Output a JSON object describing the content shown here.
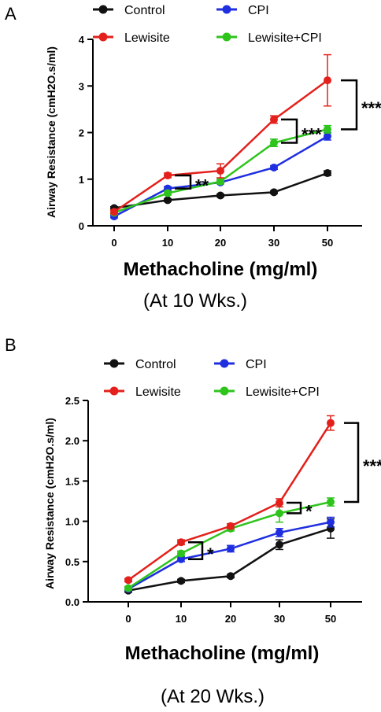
{
  "chart_data": [
    {
      "type": "line",
      "panel": "A",
      "caption": "(At 10 Wks.)",
      "xlabel": "Methacholine (mg/ml)",
      "ylabel": "Airway Resistance (cmH2O.s/ml)",
      "x": [
        0,
        10,
        20,
        30,
        50
      ],
      "x_tick_labels": [
        "0",
        "10",
        "20",
        "30",
        "50"
      ],
      "ylim": [
        0,
        4
      ],
      "y_ticks": [
        0,
        1,
        2,
        3,
        4
      ],
      "y_tick_labels": [
        "0",
        "1",
        "2",
        "3",
        "4"
      ],
      "series": [
        {
          "name": "Control",
          "color": "#111111",
          "values": [
            0.38,
            0.55,
            0.65,
            0.72,
            1.13
          ],
          "errors": [
            0.03,
            0.03,
            0.03,
            0.03,
            0.05
          ]
        },
        {
          "name": "CPI",
          "color": "#1f2fe0",
          "values": [
            0.2,
            0.8,
            0.93,
            1.25,
            1.92
          ],
          "errors": [
            0.03,
            0.04,
            0.03,
            0.04,
            0.08
          ]
        },
        {
          "name": "Lewisite",
          "color": "#e3201b",
          "values": [
            0.3,
            1.08,
            1.18,
            2.28,
            3.12
          ],
          "errors": [
            0.04,
            0.05,
            0.15,
            0.08,
            0.55
          ]
        },
        {
          "name": "Lewisite+CPI",
          "color": "#2ec41c",
          "values": [
            0.28,
            0.7,
            0.95,
            1.78,
            2.07
          ],
          "errors": [
            0.03,
            0.04,
            0.05,
            0.08,
            0.08
          ]
        }
      ],
      "annotations": [
        {
          "label": "**",
          "x": 10,
          "y_top": 1.08,
          "y_bottom": 0.8
        },
        {
          "label": "***",
          "x": 30,
          "y_top": 2.28,
          "y_bottom": 1.78
        },
        {
          "label": "***",
          "x": 50,
          "y_top": 3.12,
          "y_bottom": 2.07
        }
      ],
      "legend_position": "top",
      "grid": false
    },
    {
      "type": "line",
      "panel": "B",
      "caption": "(At 20 Wks.)",
      "xlabel": "Methacholine (mg/ml)",
      "ylabel": "Airway Resistance (cmH2O.s/ml)",
      "x": [
        0,
        10,
        20,
        30,
        50
      ],
      "x_tick_labels": [
        "0",
        "10",
        "20",
        "30",
        "50"
      ],
      "ylim": [
        0,
        2.5
      ],
      "y_ticks": [
        0,
        0.5,
        1.0,
        1.5,
        2.0,
        2.5
      ],
      "y_tick_labels": [
        "0.0",
        "0.5",
        "1.0",
        "1.5",
        "2.0",
        "2.5"
      ],
      "series": [
        {
          "name": "Control",
          "color": "#111111",
          "values": [
            0.14,
            0.26,
            0.32,
            0.71,
            0.91
          ],
          "errors": [
            0.02,
            0.02,
            0.02,
            0.06,
            0.12
          ]
        },
        {
          "name": "CPI",
          "color": "#1f2fe0",
          "values": [
            0.16,
            0.53,
            0.66,
            0.86,
            0.99
          ],
          "errors": [
            0.02,
            0.03,
            0.04,
            0.05,
            0.06
          ]
        },
        {
          "name": "Lewisite",
          "color": "#e3201b",
          "values": [
            0.27,
            0.74,
            0.94,
            1.23,
            2.22
          ],
          "errors": [
            0.02,
            0.03,
            0.03,
            0.05,
            0.09
          ]
        },
        {
          "name": "Lewisite+CPI",
          "color": "#2ec41c",
          "values": [
            0.17,
            0.6,
            0.91,
            1.1,
            1.24
          ],
          "errors": [
            0.02,
            0.03,
            0.03,
            0.11,
            0.05
          ]
        }
      ],
      "annotations": [
        {
          "label": "*",
          "x": 10,
          "y_top": 0.74,
          "y_bottom": 0.53
        },
        {
          "label": "*",
          "x": 30,
          "y_top": 1.23,
          "y_bottom": 1.1
        },
        {
          "label": "***",
          "x": 50,
          "y_top": 2.22,
          "y_bottom": 1.24
        }
      ],
      "legend_position": "top",
      "grid": false
    }
  ]
}
